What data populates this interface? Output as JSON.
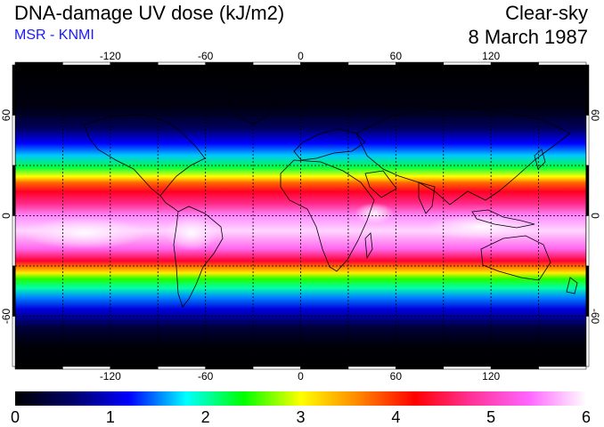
{
  "title": "DNA-damage UV dose (kJ/m2)",
  "subtitle": "MSR - KNMI",
  "condition": "Clear-sky",
  "date": "8 March 1987",
  "map": {
    "projection": "equirectangular",
    "lon_range": [
      -180,
      180
    ],
    "lat_range": [
      -90,
      90
    ],
    "lon_ticks": [
      "-120",
      "-60",
      "0",
      "60",
      "120"
    ],
    "lon_tick_values": [
      -120,
      -60,
      0,
      60,
      120
    ],
    "lat_ticks": [
      "60",
      "0",
      "-60"
    ],
    "lat_tick_values": [
      60,
      0,
      -60
    ],
    "gridlines": "dashed",
    "grid_lon_step": 30,
    "grid_lat_step": 30
  },
  "colorbar": {
    "min": 0,
    "max": 6,
    "tick_labels": [
      "0",
      "1",
      "2",
      "3",
      "4",
      "5",
      "6"
    ],
    "colors": [
      "#000000",
      "#000066",
      "#0000ff",
      "#00ffff",
      "#00ff00",
      "#ffff00",
      "#ff8800",
      "#ff0000",
      "#ff3399",
      "#ff66ff",
      "#ffffff"
    ]
  }
}
